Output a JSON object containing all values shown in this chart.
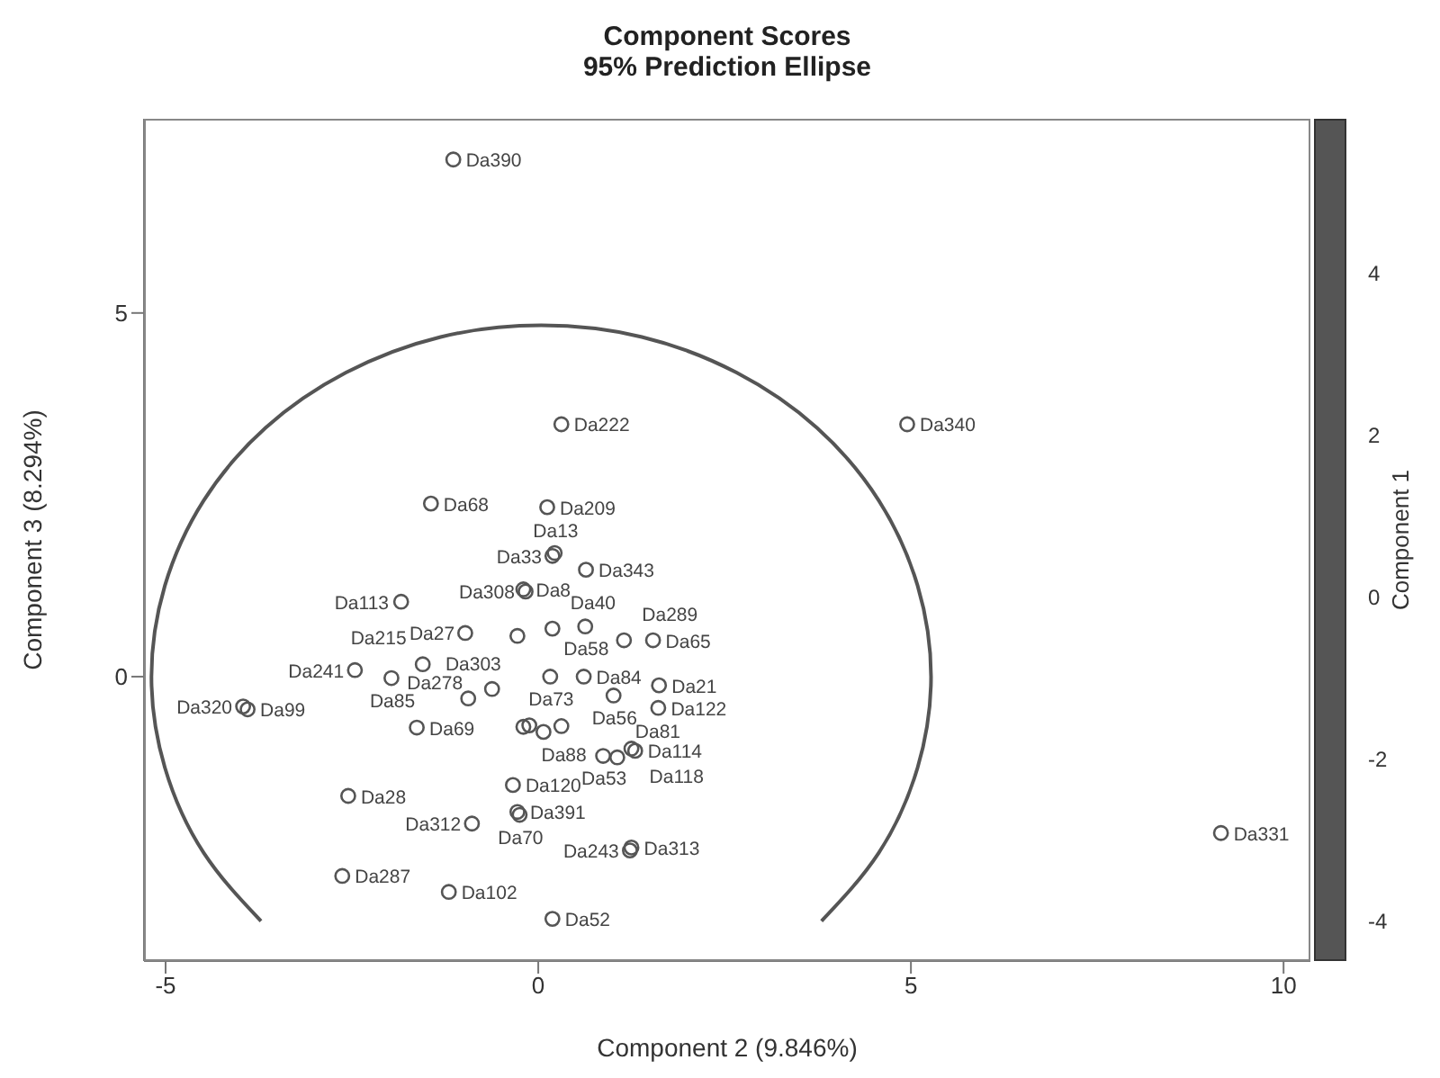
{
  "chart_data": {
    "type": "scatter",
    "title": "Component Scores",
    "subtitle": "95% Prediction Ellipse",
    "xlabel": "Component 2 (9.846%)",
    "ylabel": "Component 3 (8.294%)",
    "y2label": "Component 1",
    "xlim": [
      -5.29,
      10.36
    ],
    "ylim": [
      -3.91,
      7.67
    ],
    "xticks": [
      -5,
      0,
      5,
      10
    ],
    "yticks": [
      0,
      5
    ],
    "y2lim": [
      -4.5,
      5.9
    ],
    "y2ticks": [
      -4,
      -2,
      0,
      2,
      4
    ],
    "grid": false,
    "series": [
      {
        "type": "scatter",
        "color": "#555555",
        "marker": "circle",
        "x": [
          -1.14,
          0.31,
          -1.44,
          0.12,
          4.95,
          9.16,
          0.19,
          0.22,
          0.64,
          -0.2,
          -0.17,
          -1.84,
          -0.98,
          -0.28,
          0.63,
          0.19,
          1.15,
          1.54,
          -3.96,
          -3.9,
          -2.46,
          -1.55,
          -1.97,
          -1.63,
          0.16,
          0.61,
          1.62,
          1.01,
          1.61,
          -0.94,
          -0.2,
          1.25,
          0.87,
          1.06,
          1.3,
          -0.34,
          -2.55,
          -0.28,
          -0.25,
          -0.89,
          1.25,
          1.23,
          -2.63,
          -1.2,
          0.19,
          -0.62,
          -0.12,
          0.07,
          0.31
        ],
        "values": [
          7.11,
          3.47,
          2.38,
          2.33,
          3.47,
          -2.15,
          1.66,
          1.7,
          1.47,
          1.2,
          1.17,
          1.03,
          0.6,
          0.56,
          0.69,
          0.66,
          0.5,
          0.5,
          -0.41,
          -0.45,
          0.09,
          0.17,
          -0.02,
          -0.7,
          0.0,
          0.0,
          -0.12,
          -0.26,
          -0.43,
          -0.3,
          -0.69,
          -0.99,
          -1.09,
          -1.11,
          -1.02,
          -1.49,
          -1.64,
          -1.86,
          -1.9,
          -2.02,
          -2.35,
          -2.39,
          -2.74,
          -2.96,
          -3.33,
          -0.17,
          -0.67,
          -0.76,
          -0.68
        ],
        "value_labels": [
          "Da390",
          "Da222",
          "Da68",
          "Da209",
          "Da340",
          "Da331",
          "Da33",
          "Da13",
          "Da343",
          "Da8",
          "Da308",
          "Da113",
          "Da27",
          "Da303",
          "Da58",
          "Da40",
          "Da289",
          "Da65",
          "Da320",
          "Da99",
          "Da241",
          "Da215",
          "Da85",
          "Da69",
          "Da73",
          "Da84",
          "Da21",
          "Da56",
          "Da122",
          "Da278",
          "Da88",
          "Da118",
          "Da53",
          "Da81",
          "Da114",
          "Da120",
          "Da28",
          "Da391",
          "Da70",
          "Da312",
          "Da313",
          "Da243",
          "Da287",
          "Da102",
          "Da52",
          null,
          null,
          null,
          null
        ]
      },
      {
        "type": "line",
        "color": "#555555",
        "marker": "none",
        "x": [
          -3.72,
          -4.49,
          -5.01,
          -5.19,
          -5.01,
          -4.49,
          -3.66,
          -2.58,
          -1.31,
          0.04,
          1.39,
          2.66,
          3.74,
          4.57,
          5.09,
          5.27,
          5.09,
          4.57,
          3.8
        ],
        "values": [
          -3.36,
          -2.42,
          -1.25,
          0,
          1.25,
          2.42,
          3.42,
          4.18,
          4.67,
          4.83,
          4.67,
          4.18,
          3.42,
          2.42,
          1.25,
          0,
          -1.25,
          -2.42,
          -3.36
        ]
      }
    ]
  }
}
